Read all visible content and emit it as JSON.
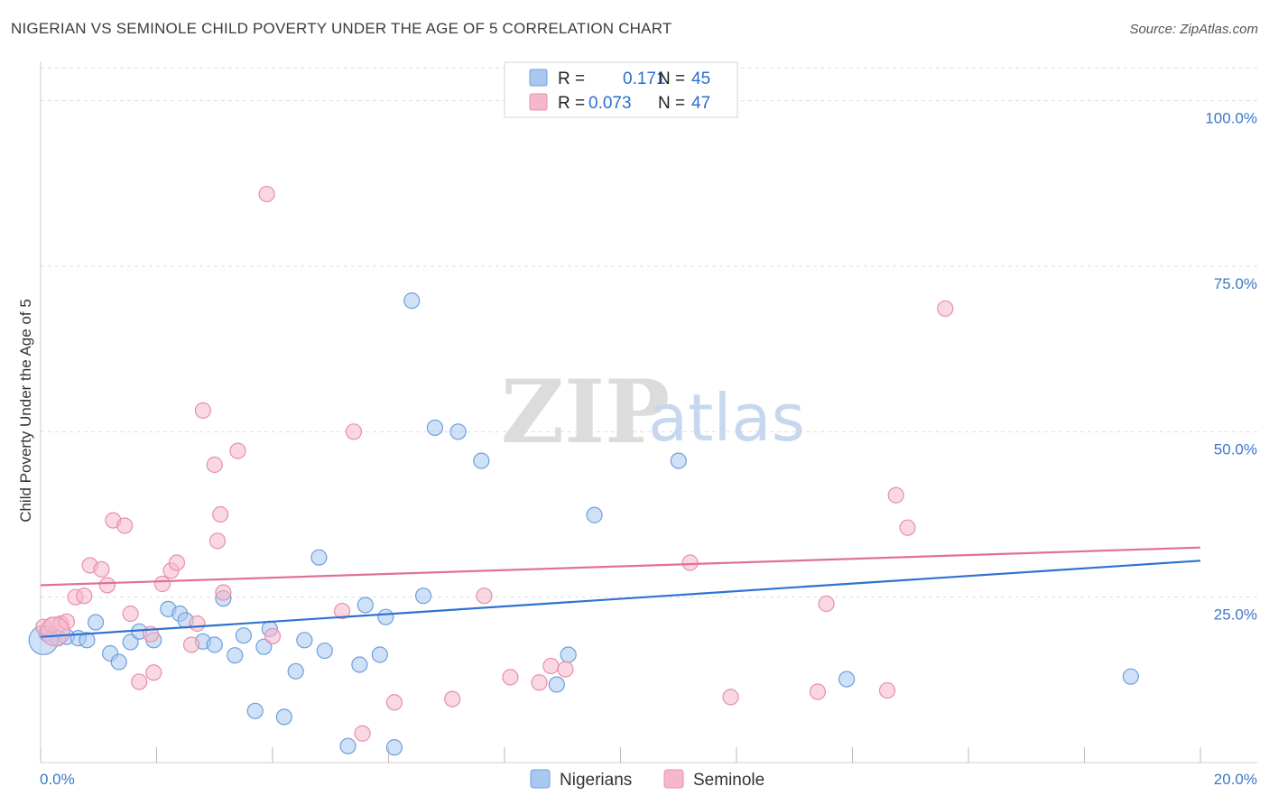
{
  "title": "NIGERIAN VS SEMINOLE CHILD POVERTY UNDER THE AGE OF 5 CORRELATION CHART",
  "source": "Source: ZipAtlas.com",
  "watermark": {
    "zip": "ZIP",
    "atlas": "atlas"
  },
  "legend": {
    "r_label": "R =",
    "n_label": "N =",
    "rows": [
      {
        "r": "0.171",
        "n": "45",
        "color": "#a8c8f0"
      },
      {
        "r": "0.073",
        "n": "47",
        "color": "#f5b8cb"
      }
    ]
  },
  "chart_data": {
    "type": "scatter",
    "title": "NIGERIAN VS SEMINOLE CHILD POVERTY UNDER THE AGE OF 5 CORRELATION CHART",
    "xlabel": "",
    "ylabel": "Child Poverty Under the Age of 5",
    "xlim": [
      0,
      20
    ],
    "ylim": [
      0,
      105
    ],
    "x_tick_labels": [
      "0.0%",
      "20.0%"
    ],
    "y_ticks": [
      25,
      50,
      75,
      100
    ],
    "y_tick_labels": [
      "25.0%",
      "50.0%",
      "75.0%",
      "100.0%"
    ],
    "grid": true,
    "legend_position": "top-center",
    "series": [
      {
        "name": "Nigerians",
        "color": "#a8c8f0",
        "stroke": "#6f9fdc",
        "trend_color": "#2f72d0",
        "trend": [
          [
            0,
            19.0
          ],
          [
            20,
            30.5
          ]
        ],
        "points": [
          [
            0.1,
            19.5
          ],
          [
            0.3,
            18.8
          ],
          [
            0.45,
            19.0
          ],
          [
            0.65,
            18.8
          ],
          [
            0.8,
            18.5
          ],
          [
            0.95,
            21.2
          ],
          [
            1.2,
            16.5
          ],
          [
            1.35,
            15.2
          ],
          [
            1.55,
            18.2
          ],
          [
            1.7,
            19.8
          ],
          [
            1.95,
            18.5
          ],
          [
            2.2,
            23.2
          ],
          [
            2.4,
            22.5
          ],
          [
            2.5,
            21.5
          ],
          [
            2.8,
            18.3
          ],
          [
            3.0,
            17.8
          ],
          [
            3.15,
            24.8
          ],
          [
            3.35,
            16.2
          ],
          [
            3.5,
            19.2
          ],
          [
            3.7,
            7.8
          ],
          [
            3.85,
            17.5
          ],
          [
            3.95,
            20.2
          ],
          [
            4.2,
            6.9
          ],
          [
            4.4,
            13.8
          ],
          [
            4.55,
            18.5
          ],
          [
            4.8,
            31.0
          ],
          [
            4.9,
            16.9
          ],
          [
            5.3,
            2.5
          ],
          [
            5.5,
            14.8
          ],
          [
            5.6,
            23.8
          ],
          [
            5.85,
            16.3
          ],
          [
            5.95,
            22.0
          ],
          [
            6.1,
            2.3
          ],
          [
            6.4,
            69.8
          ],
          [
            6.6,
            25.2
          ],
          [
            6.8,
            50.6
          ],
          [
            7.2,
            50.0
          ],
          [
            7.6,
            45.6
          ],
          [
            8.9,
            11.8
          ],
          [
            9.1,
            16.3
          ],
          [
            9.55,
            37.4
          ],
          [
            11.0,
            45.6
          ],
          [
            13.9,
            12.6
          ],
          [
            18.8,
            13.0
          ],
          [
            0.05,
            18.5
          ]
        ]
      },
      {
        "name": "Seminole",
        "color": "#f5b8cb",
        "stroke": "#e88fab",
        "trend_color": "#e07099",
        "trend": [
          [
            0,
            26.8
          ],
          [
            20,
            32.5
          ]
        ],
        "points": [
          [
            0.05,
            20.5
          ],
          [
            0.2,
            20.8
          ],
          [
            0.35,
            21.0
          ],
          [
            0.45,
            21.3
          ],
          [
            0.6,
            25.0
          ],
          [
            0.75,
            25.2
          ],
          [
            0.85,
            29.8
          ],
          [
            1.05,
            29.2
          ],
          [
            1.15,
            26.8
          ],
          [
            1.25,
            36.6
          ],
          [
            1.45,
            35.8
          ],
          [
            1.55,
            22.5
          ],
          [
            1.7,
            12.2
          ],
          [
            1.9,
            19.4
          ],
          [
            1.95,
            13.6
          ],
          [
            2.1,
            27.0
          ],
          [
            2.25,
            29.0
          ],
          [
            2.35,
            30.2
          ],
          [
            2.6,
            17.8
          ],
          [
            2.7,
            21.0
          ],
          [
            2.8,
            53.2
          ],
          [
            3.0,
            45.0
          ],
          [
            3.05,
            33.5
          ],
          [
            3.1,
            37.5
          ],
          [
            3.15,
            25.7
          ],
          [
            3.4,
            47.1
          ],
          [
            3.9,
            85.9
          ],
          [
            4.0,
            19.1
          ],
          [
            5.2,
            22.9
          ],
          [
            5.4,
            50.0
          ],
          [
            5.55,
            4.4
          ],
          [
            6.1,
            9.1
          ],
          [
            7.1,
            9.6
          ],
          [
            7.65,
            25.2
          ],
          [
            8.1,
            12.9
          ],
          [
            8.6,
            12.1
          ],
          [
            8.8,
            14.6
          ],
          [
            9.05,
            14.1
          ],
          [
            11.2,
            30.2
          ],
          [
            11.9,
            9.9
          ],
          [
            13.4,
            10.7
          ],
          [
            13.55,
            24.0
          ],
          [
            14.6,
            10.9
          ],
          [
            14.75,
            40.4
          ],
          [
            14.95,
            35.5
          ],
          [
            15.6,
            68.6
          ],
          [
            0.25,
            19.8
          ]
        ]
      }
    ]
  }
}
